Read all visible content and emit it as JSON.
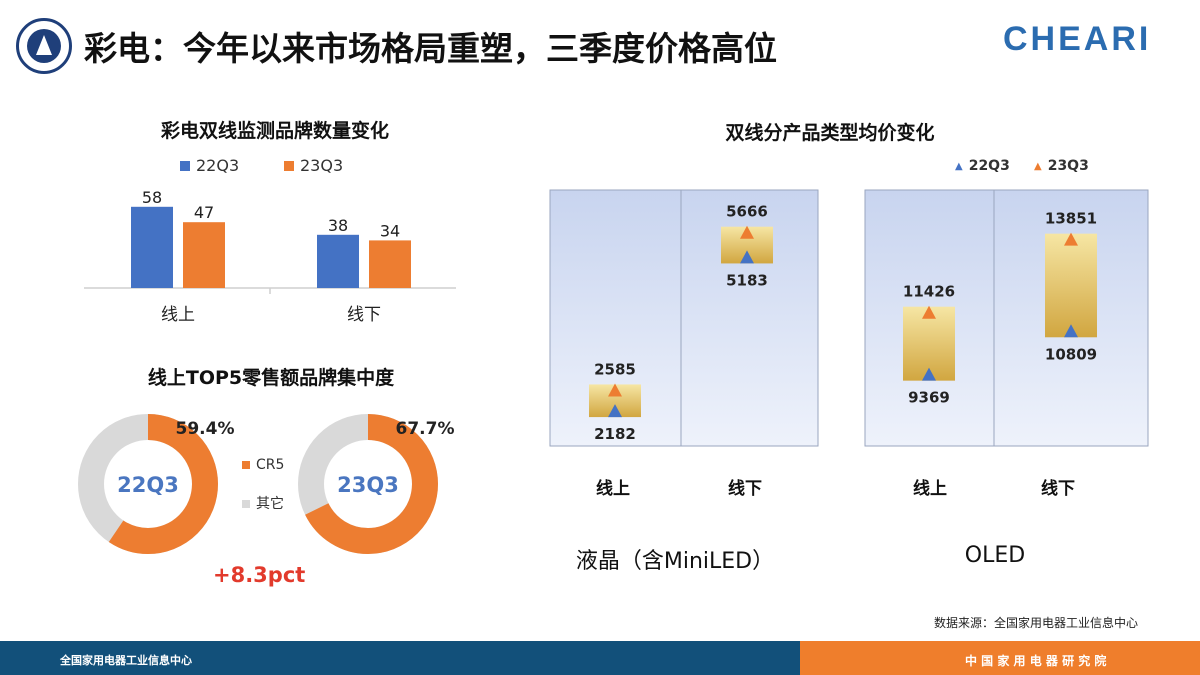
{
  "header": {
    "title": "彩电：今年以来市场格局重塑，三季度价格高位",
    "brand": "CHEARI"
  },
  "colors": {
    "c22": "#4472c4",
    "c23": "#ed7d31",
    "other": "#d9d9d9",
    "accent_red": "#e23a2c",
    "footer_blue": "#12507a",
    "footer_orange": "#ef7e2c"
  },
  "chart_data": [
    {
      "type": "bar",
      "title": "彩电双线监测品牌数量变化",
      "categories": [
        "线上",
        "线下"
      ],
      "series": [
        {
          "name": "22Q3",
          "values": [
            58,
            38
          ]
        },
        {
          "name": "23Q3",
          "values": [
            47,
            34
          ]
        }
      ],
      "legend": "top"
    },
    {
      "type": "pie",
      "title": "线上TOP5零售额品牌集中度",
      "donuts": [
        {
          "center_label": "22Q3",
          "cr5": 59.4,
          "cr5_label": "59.4%"
        },
        {
          "center_label": "23Q3",
          "cr5": 67.7,
          "cr5_label": "67.7%"
        }
      ],
      "legend": [
        "CR5",
        "其它"
      ],
      "annotation": "+8.3pct"
    },
    {
      "type": "scatter",
      "title": "双线分产品类型均价变化",
      "legend": [
        "22Q3",
        "23Q3"
      ],
      "panels": [
        {
          "label": "液晶（含MiniLED）",
          "ylim": [
            1500,
            6500
          ],
          "categories": [
            "线上",
            "线下"
          ],
          "series": [
            {
              "name": "22Q3",
              "values": [
                2182,
                5183
              ]
            },
            {
              "name": "23Q3",
              "values": [
                2585,
                5666
              ]
            }
          ]
        },
        {
          "label": "OLED",
          "ylim": [
            7000,
            15500
          ],
          "categories": [
            "线上",
            "线下"
          ],
          "series": [
            {
              "name": "22Q3",
              "values": [
                9369,
                10809
              ]
            },
            {
              "name": "23Q3",
              "values": [
                11426,
                13851
              ]
            }
          ]
        }
      ]
    }
  ],
  "footer": {
    "left": "全国家用电器工业信息中心",
    "right": "中 国 家 用 电 器 研 究 院",
    "source": "数据来源：全国家用电器工业信息中心"
  }
}
